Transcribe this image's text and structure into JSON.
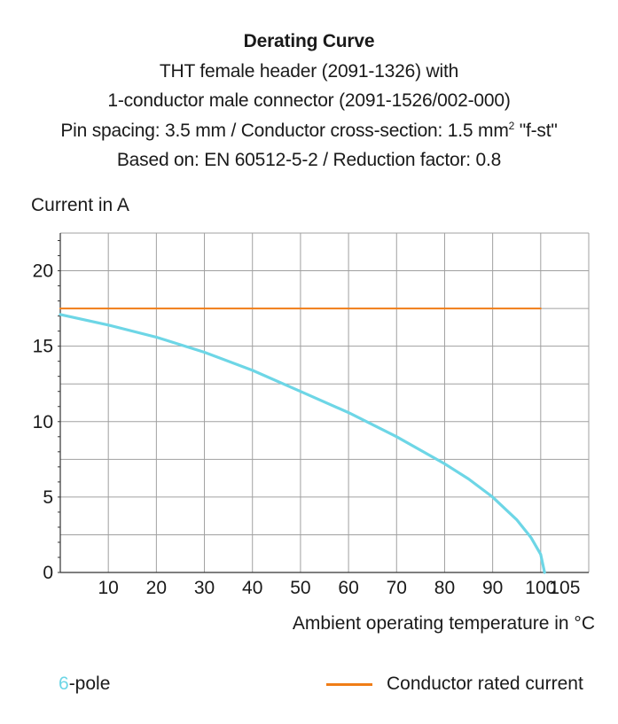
{
  "header": {
    "title": "Derating Curve",
    "line2": "THT female header (2091-1326) with",
    "line3": "1-conductor male connector (2091-1526/002-000)",
    "line4_pre": "Pin spacing: 3.5 mm / Conductor cross-section: 1.5 mm",
    "line4_sup": "2",
    "line4_post": " \"f-st\"",
    "line5": "Based on: EN 60512-5-2 / Reduction factor: 0.8"
  },
  "legend": {
    "series_number": "6",
    "series_suffix": "-pole",
    "rated_label": "Conductor rated current"
  },
  "colors": {
    "series": "#6dd6e6",
    "rated": "#f07d17",
    "grid": "#a0a0a0",
    "axis": "#333333"
  },
  "chart_data": {
    "type": "line",
    "title": "Derating Curve",
    "xlabel": "Ambient operating temperature in °C",
    "ylabel": "Current in A",
    "xlim": [
      0,
      110
    ],
    "ylim": [
      0,
      22.5
    ],
    "x_ticks": [
      10,
      20,
      30,
      40,
      50,
      60,
      70,
      80,
      90,
      100,
      105
    ],
    "y_ticks": [
      0,
      5,
      10,
      15,
      20
    ],
    "grid": true,
    "legend_position": "bottom",
    "series": [
      {
        "name": "6-pole",
        "x": [
          0,
          10,
          20,
          30,
          40,
          50,
          60,
          70,
          80,
          85,
          90,
          95,
          98,
          100,
          100.8
        ],
        "y": [
          17.1,
          16.4,
          15.6,
          14.6,
          13.4,
          12.0,
          10.6,
          9.0,
          7.2,
          6.2,
          5.0,
          3.5,
          2.3,
          1.2,
          0
        ]
      },
      {
        "name": "Conductor rated current",
        "x": [
          0,
          100
        ],
        "y": [
          17.5,
          17.5
        ]
      }
    ]
  }
}
